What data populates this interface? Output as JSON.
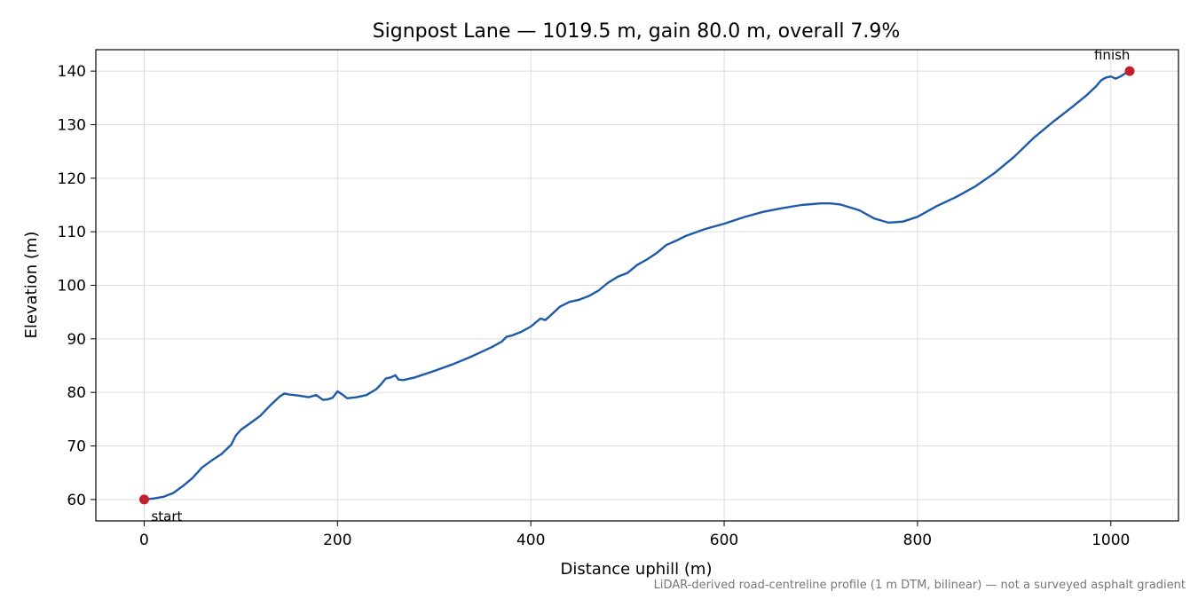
{
  "chart_data": {
    "type": "line",
    "title": "Signpost Lane — 1019.5 m, gain 80.0 m, overall 7.9%",
    "xlabel": "Distance uphill (m)",
    "ylabel": "Elevation (m)",
    "xlim": [
      -50,
      1070
    ],
    "ylim": [
      56,
      144
    ],
    "xticks": [
      0,
      200,
      400,
      600,
      800,
      1000
    ],
    "yticks": [
      60,
      70,
      80,
      90,
      100,
      110,
      120,
      130,
      140
    ],
    "grid": true,
    "line_color": "#1f5aa8",
    "marker_color": "#c0202e",
    "series": [
      {
        "x": [
          0,
          10,
          20,
          30,
          40,
          50,
          60,
          70,
          80,
          90,
          95,
          100,
          110,
          120,
          130,
          140,
          145,
          150,
          160,
          170,
          178,
          185,
          190,
          195,
          200,
          205,
          210,
          220,
          230,
          240,
          245,
          250,
          255,
          260,
          263,
          268,
          280,
          300,
          320,
          340,
          360,
          370,
          375,
          380,
          390,
          400,
          410,
          415,
          420,
          430,
          440,
          450,
          460,
          470,
          480,
          490,
          500,
          510,
          520,
          530,
          540,
          550,
          560,
          580,
          600,
          620,
          640,
          660,
          680,
          700,
          710,
          720,
          740,
          755,
          770,
          785,
          800,
          820,
          840,
          860,
          880,
          900,
          920,
          940,
          960,
          975,
          985,
          990,
          995,
          1000,
          1005,
          1010,
          1015,
          1019.5
        ],
        "y": [
          60.0,
          60.2,
          60.5,
          61.2,
          62.5,
          64.0,
          66.0,
          67.3,
          68.5,
          70.2,
          72.0,
          73.0,
          74.3,
          75.6,
          77.5,
          79.2,
          79.8,
          79.6,
          79.4,
          79.1,
          79.5,
          78.6,
          78.7,
          79.0,
          80.2,
          79.6,
          78.9,
          79.1,
          79.5,
          80.6,
          81.5,
          82.6,
          82.8,
          83.2,
          82.4,
          82.3,
          82.8,
          84.0,
          85.3,
          86.8,
          88.5,
          89.5,
          90.4,
          90.6,
          91.3,
          92.3,
          93.8,
          93.5,
          94.3,
          96.0,
          96.9,
          97.3,
          98.0,
          99.0,
          100.5,
          101.6,
          102.3,
          103.8,
          104.8,
          106.0,
          107.5,
          108.3,
          109.2,
          110.5,
          111.5,
          112.7,
          113.7,
          114.4,
          115.0,
          115.3,
          115.3,
          115.1,
          114.0,
          112.5,
          111.7,
          111.9,
          112.8,
          114.8,
          116.5,
          118.5,
          121.0,
          124.0,
          127.5,
          130.5,
          133.3,
          135.5,
          137.2,
          138.3,
          138.8,
          139.0,
          138.6,
          139.0,
          139.6,
          140.0
        ]
      }
    ],
    "annotations": [
      {
        "text": "start",
        "x": 0,
        "y": 60.0
      },
      {
        "text": "finish",
        "x": 1019.5,
        "y": 140.0
      }
    ],
    "footnote": "LiDAR-derived road-centreline profile (1 m DTM, bilinear) — not a surveyed asphalt gradient"
  }
}
